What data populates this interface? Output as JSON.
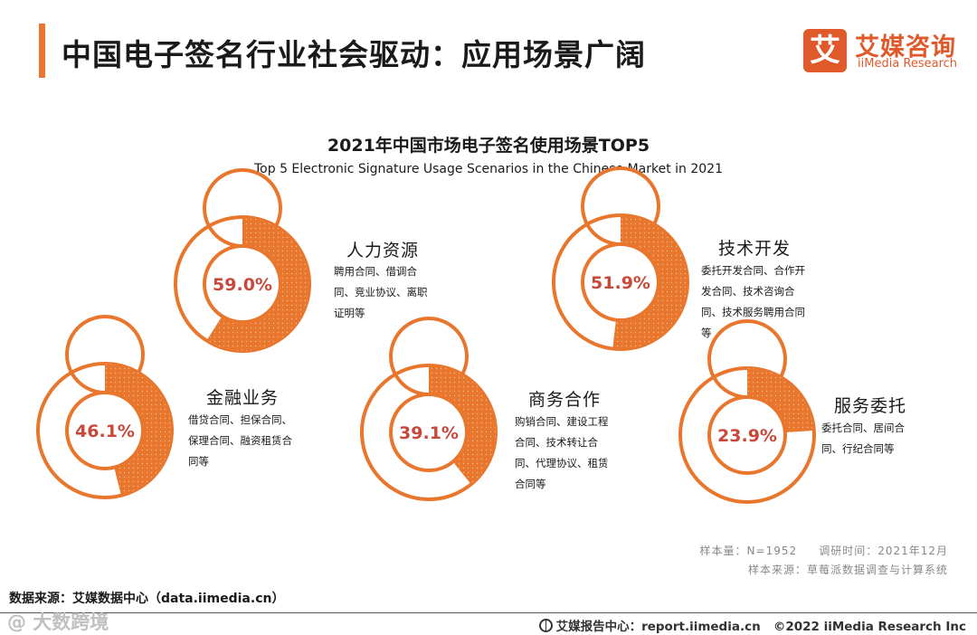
{
  "header": {
    "title": "中国电子签名行业社会驱动：应用场景广阔"
  },
  "logo": {
    "mark": "艾",
    "name_cn": "艾媒咨询",
    "name_en": "iiMedia Research"
  },
  "colors": {
    "accent": "#ee7330",
    "ring": "#e8762d",
    "value_text": "#c8483a"
  },
  "chart_data": {
    "type": "pie",
    "title": "2021年中国市场电子签名使用场景TOP5",
    "subtitle": "Top 5 Electronic Signature Usage Scenarios in the Chinese Market in 2021",
    "items": [
      {
        "label": "人力资源",
        "value": 59.0,
        "value_label": "59.0%",
        "description": "聘用合同、借调合同、竞业协议、离职证明等"
      },
      {
        "label": "技术开发",
        "value": 51.9,
        "value_label": "51.9%",
        "description": "委托开发合同、合作开发合同、技术咨询合同、技术服务聘用合同等"
      },
      {
        "label": "金融业务",
        "value": 46.1,
        "value_label": "46.1%",
        "description": "借贷合同、担保合同、保理合同、融资租赁合同等"
      },
      {
        "label": "商务合作",
        "value": 39.1,
        "value_label": "39.1%",
        "description": "购销合同、建设工程合同、技术转让合同、代理协议、租赁合同等"
      },
      {
        "label": "服务委托",
        "value": 23.9,
        "value_label": "23.9%",
        "description": "委托合同、居间合同、行纪合同等"
      }
    ]
  },
  "meta": {
    "sample": "样本量：N=1952",
    "survey_time": "调研时间：2021年12月",
    "sample_source": "样本来源：草莓派数据调查与计算系统"
  },
  "footer": {
    "data_source": "数据来源：艾媒数据中心（data.iimedia.cn）",
    "watermark": "@ 大数跨境",
    "report_center": "艾媒报告中心：report.iimedia.cn",
    "copyright": "©2022  iiMedia Research  Inc"
  }
}
